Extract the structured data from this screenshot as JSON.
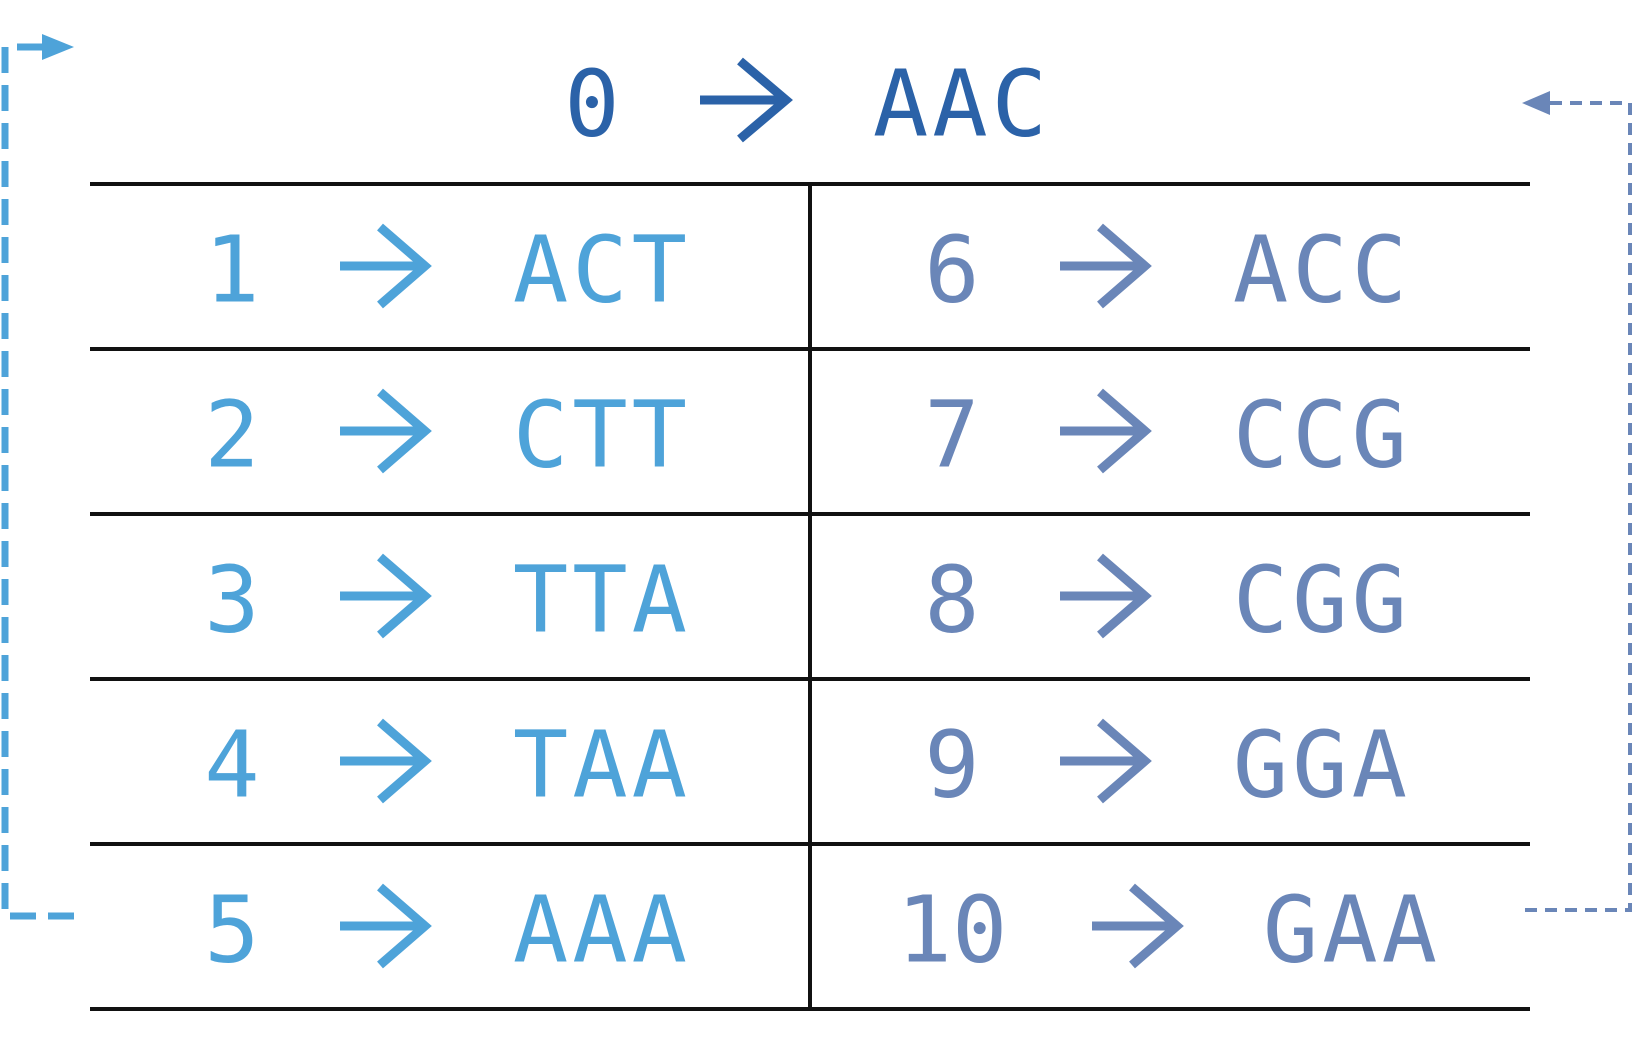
{
  "colors": {
    "top": "#2b62a8",
    "left": "#4ea3d9",
    "right": "#6a86b8",
    "rule": "#111111"
  },
  "top_row": {
    "index": "0",
    "codon": "AAC"
  },
  "left_column": [
    {
      "index": "1",
      "codon": "ACT"
    },
    {
      "index": "2",
      "codon": "CTT"
    },
    {
      "index": "3",
      "codon": "TTA"
    },
    {
      "index": "4",
      "codon": "TAA"
    },
    {
      "index": "5",
      "codon": "AAA"
    }
  ],
  "right_column": [
    {
      "index": "6",
      "codon": "ACC"
    },
    {
      "index": "7",
      "codon": "CCG"
    },
    {
      "index": "8",
      "codon": "CGG"
    },
    {
      "index": "9",
      "codon": "GGA"
    },
    {
      "index": "10",
      "codon": "GAA"
    }
  ]
}
